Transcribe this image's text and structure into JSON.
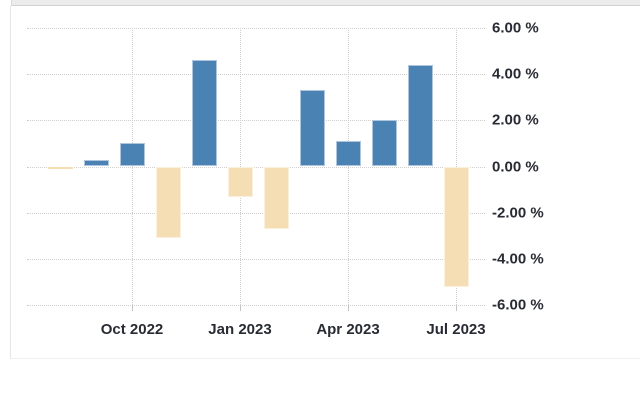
{
  "chart_data": {
    "type": "bar",
    "categories": [
      "Aug 2022",
      "Sep 2022",
      "Oct 2022",
      "Nov 2022",
      "Dec 2022",
      "Jan 2023",
      "Feb 2023",
      "Mar 2023",
      "Apr 2023",
      "May 2023",
      "Jun 2023",
      "Jul 2023"
    ],
    "values": [
      -0.1,
      0.3,
      1.0,
      -3.1,
      4.6,
      -1.3,
      -2.7,
      3.3,
      1.1,
      2.0,
      4.4,
      -5.2
    ],
    "unit": "%",
    "xlabel": "",
    "ylabel": "",
    "ylim": [
      -6,
      6
    ],
    "grid": "dotted",
    "legend": "none",
    "y_ticks": [
      {
        "value": 6,
        "label": "6.00 %"
      },
      {
        "value": 4,
        "label": "4.00 %"
      },
      {
        "value": 2,
        "label": "2.00 %"
      },
      {
        "value": 0,
        "label": "0.00 %"
      },
      {
        "value": -2,
        "label": "-2.00 %"
      },
      {
        "value": -4,
        "label": "-4.00 %"
      },
      {
        "value": -6,
        "label": "-6.00 %"
      }
    ],
    "x_ticks": [
      {
        "index": 2,
        "label": "Oct 2022"
      },
      {
        "index": 5,
        "label": "Jan 2023"
      },
      {
        "index": 8,
        "label": "Apr 2023"
      },
      {
        "index": 11,
        "label": "Jul 2023"
      }
    ],
    "colors": {
      "positive_bar": "#4a82b3",
      "negative_bar": "#f5deb3",
      "bar_edge": "rgba(255,255,255,0.55)",
      "grid_line": "#cfcfcf",
      "tick_line": "#c4c4c4",
      "axis_text": "#282b33"
    }
  }
}
